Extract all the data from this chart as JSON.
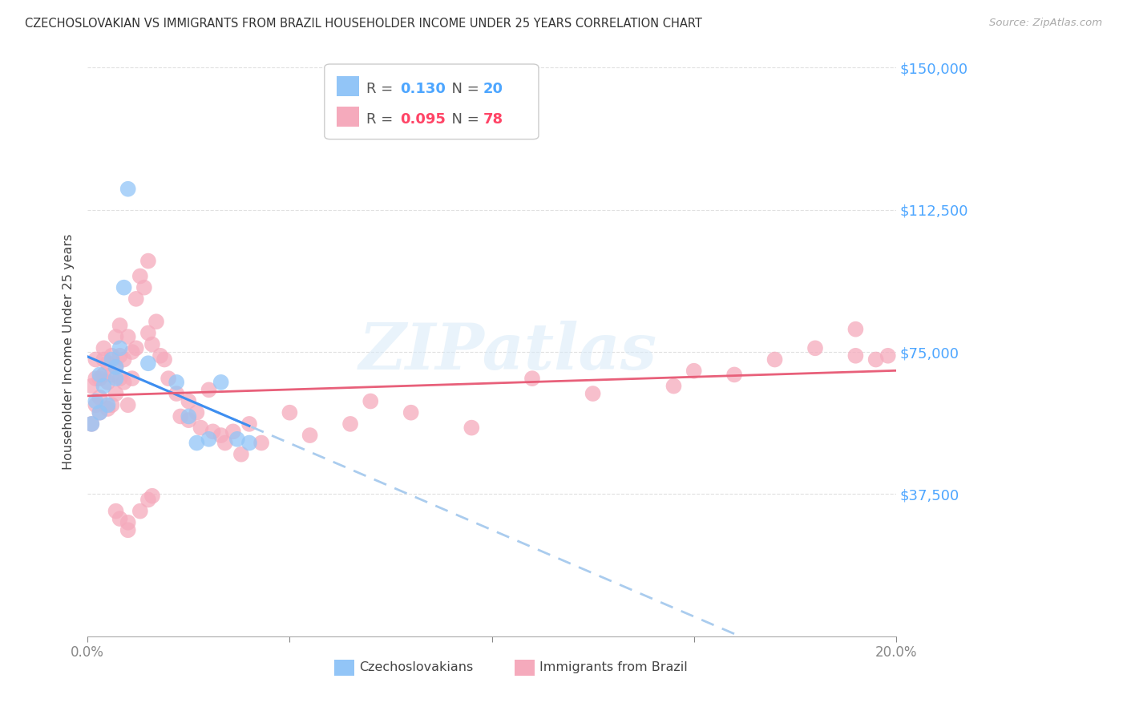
{
  "title": "CZECHOSLOVAKIAN VS IMMIGRANTS FROM BRAZIL HOUSEHOLDER INCOME UNDER 25 YEARS CORRELATION CHART",
  "source": "Source: ZipAtlas.com",
  "ylabel": "Householder Income Under 25 years",
  "xlabel": "",
  "xlim": [
    0.0,
    0.2
  ],
  "ylim": [
    0,
    150000
  ],
  "yticks": [
    0,
    37500,
    75000,
    112500,
    150000
  ],
  "ytick_labels": [
    "",
    "$37,500",
    "$75,000",
    "$112,500",
    "$150,000"
  ],
  "xticks": [
    0.0,
    0.05,
    0.1,
    0.15,
    0.2
  ],
  "xtick_labels": [
    "0.0%",
    "",
    "",
    "",
    "20.0%"
  ],
  "background_color": "#ffffff",
  "grid_color": "#e0e0e0",
  "series1_color": "#92C5F7",
  "series2_color": "#F5AABC",
  "line1_color": "#3d8ef0",
  "line1_dash_color": "#aaccee",
  "line2_color": "#e8607a",
  "watermark": "ZIPatlas",
  "watermark_color": "#d8eaf8",
  "legend_R1": "0.130",
  "legend_N1": "20",
  "legend_R2": "0.095",
  "legend_N2": "78",
  "legend_color_R": "#4da6ff",
  "legend_color_N": "#ff4466",
  "series1_label": "Czechoslovakians",
  "series2_label": "Immigrants from Brazil",
  "czech_x": [
    0.001,
    0.002,
    0.003,
    0.003,
    0.004,
    0.005,
    0.006,
    0.007,
    0.007,
    0.008,
    0.009,
    0.01,
    0.015,
    0.022,
    0.025,
    0.027,
    0.03,
    0.033,
    0.037,
    0.04
  ],
  "czech_y": [
    56000,
    62000,
    59000,
    69000,
    66000,
    61000,
    73000,
    71000,
    68000,
    76000,
    92000,
    118000,
    72000,
    67000,
    58000,
    51000,
    52000,
    67000,
    52000,
    51000
  ],
  "brazil_x": [
    0.001,
    0.001,
    0.002,
    0.002,
    0.002,
    0.003,
    0.003,
    0.003,
    0.004,
    0.004,
    0.004,
    0.005,
    0.005,
    0.005,
    0.006,
    0.006,
    0.006,
    0.007,
    0.007,
    0.007,
    0.008,
    0.008,
    0.008,
    0.009,
    0.009,
    0.01,
    0.01,
    0.011,
    0.011,
    0.012,
    0.012,
    0.013,
    0.014,
    0.015,
    0.015,
    0.016,
    0.017,
    0.018,
    0.019,
    0.02,
    0.022,
    0.023,
    0.025,
    0.025,
    0.027,
    0.028,
    0.03,
    0.031,
    0.033,
    0.034,
    0.036,
    0.038,
    0.04,
    0.043,
    0.05,
    0.055,
    0.065,
    0.07,
    0.08,
    0.095,
    0.11,
    0.125,
    0.145,
    0.15,
    0.16,
    0.17,
    0.18,
    0.19,
    0.195,
    0.198,
    0.008,
    0.01,
    0.013,
    0.016,
    0.01,
    0.007,
    0.015,
    0.19
  ],
  "brazil_y": [
    56000,
    66000,
    61000,
    68000,
    73000,
    63000,
    68000,
    59000,
    69000,
    73000,
    76000,
    72000,
    67000,
    60000,
    74000,
    69000,
    61000,
    79000,
    71000,
    64000,
    82000,
    74000,
    68000,
    73000,
    67000,
    79000,
    61000,
    75000,
    68000,
    89000,
    76000,
    95000,
    92000,
    80000,
    99000,
    77000,
    83000,
    74000,
    73000,
    68000,
    64000,
    58000,
    57000,
    62000,
    59000,
    55000,
    65000,
    54000,
    53000,
    51000,
    54000,
    48000,
    56000,
    51000,
    59000,
    53000,
    56000,
    62000,
    59000,
    55000,
    68000,
    64000,
    66000,
    70000,
    69000,
    73000,
    76000,
    81000,
    73000,
    74000,
    31000,
    30000,
    33000,
    37000,
    28000,
    33000,
    36000,
    74000
  ]
}
